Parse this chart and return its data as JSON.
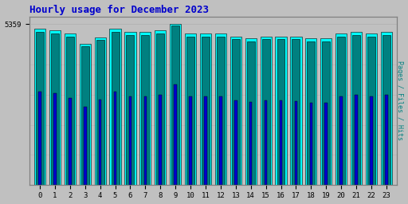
{
  "title": "Hourly usage for December 2023",
  "title_color": "#0000cc",
  "title_fontsize": 9,
  "background_color": "#c0c0c0",
  "plot_bg_color": "#c0c0c0",
  "ylabel_right": "Pages / Files / Hits",
  "ylabel_right_color": "#008080",
  "ytick_label": "5359",
  "hours": [
    0,
    1,
    2,
    3,
    4,
    5,
    6,
    7,
    8,
    9,
    10,
    11,
    12,
    13,
    14,
    15,
    16,
    17,
    18,
    19,
    20,
    21,
    22,
    23
  ],
  "pages": [
    5200,
    5150,
    5050,
    4700,
    4920,
    5200,
    5100,
    5100,
    5150,
    5359,
    5050,
    5050,
    5050,
    4950,
    4880,
    4950,
    4950,
    4950,
    4880,
    4880,
    5050,
    5100,
    5050,
    5100
  ],
  "files": [
    5100,
    5050,
    4950,
    4620,
    4820,
    5100,
    5000,
    5000,
    5050,
    5300,
    4950,
    4950,
    4950,
    4850,
    4780,
    4850,
    4850,
    4850,
    4780,
    4780,
    4950,
    5000,
    4950,
    5000
  ],
  "hits": [
    3100,
    3050,
    2900,
    2600,
    2850,
    3100,
    2950,
    2950,
    3000,
    3350,
    2950,
    2950,
    2950,
    2820,
    2750,
    2820,
    2820,
    2780,
    2720,
    2720,
    2950,
    3000,
    2950,
    3000
  ],
  "pages_color": "#00ffff",
  "files_color": "#008080",
  "hits_color": "#0000cd",
  "bar_width": 0.75,
  "ylim_max": 5600,
  "ytick_val": 5359,
  "grid_color": "#b0b0b0",
  "border_color": "#000000",
  "font_family": "monospace",
  "spine_color": "#808080"
}
